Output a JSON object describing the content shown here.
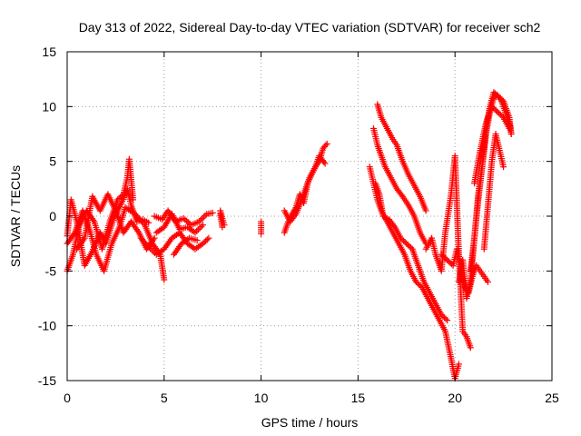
{
  "chart_data": {
    "type": "scatter",
    "title": "Day 313 of 2022, Sidereal Day-to-day VTEC variation (SDTVAR) for receiver sch2",
    "xlabel": "GPS time / hours",
    "ylabel": "SDTVAR / TECUs",
    "xlim": [
      0,
      25
    ],
    "ylim": [
      -15,
      15
    ],
    "xticks": [
      0,
      5,
      10,
      15,
      20,
      25
    ],
    "yticks": [
      -15,
      -10,
      -5,
      0,
      5,
      10,
      15
    ],
    "grid": true,
    "legend": "none",
    "marker": "plus",
    "color": "#ff0000",
    "series": [
      {
        "name": "SDTVAR",
        "tracks": [
          {
            "x": [
              0.0,
              0.2,
              0.5,
              0.9,
              1.3,
              1.7,
              2.0,
              2.4,
              2.8,
              3.1,
              3.3,
              3.6,
              3.9,
              4.2
            ],
            "y": [
              -1.8,
              1.5,
              -0.5,
              -4.5,
              -3.2,
              -1.5,
              -2.5,
              -0.2,
              1.2,
              2.5,
              1.0,
              -0.5,
              -0.3,
              -0.6
            ]
          },
          {
            "x": [
              0.0,
              0.3,
              0.6,
              1.0,
              1.4,
              1.8,
              2.2,
              2.6,
              2.9,
              3.1,
              3.2,
              3.4
            ],
            "y": [
              -5.0,
              -3.5,
              -1.0,
              0.5,
              -0.5,
              -3.0,
              -0.5,
              1.5,
              2.0,
              3.5,
              5.2,
              1.5
            ]
          },
          {
            "x": [
              0.0,
              0.4,
              0.8,
              1.2,
              1.5,
              1.9,
              2.3,
              2.7,
              3.0,
              3.5,
              4.0,
              4.4,
              4.8,
              5.0
            ],
            "y": [
              -2.5,
              -1.5,
              0.5,
              -1.5,
              -3.5,
              -5.0,
              -2.5,
              -1.0,
              0.8,
              0.2,
              -0.8,
              -2.5,
              -3.5,
              -5.8
            ]
          },
          {
            "x": [
              0.5,
              0.9,
              1.3,
              1.7,
              2.1,
              2.5,
              2.9,
              3.3,
              3.7,
              4.1,
              4.5
            ],
            "y": [
              -3.0,
              -2.0,
              1.8,
              0.5,
              2.0,
              0.5,
              -1.5,
              -0.5,
              -1.5,
              -3.0,
              -2.0
            ]
          },
          {
            "x": [
              3.8,
              4.2,
              4.6,
              5.0,
              5.4,
              5.8,
              6.2,
              6.6,
              7.0,
              7.3
            ],
            "y": [
              -2.0,
              -2.8,
              -3.5,
              -3.0,
              -2.0,
              -1.5,
              -2.5,
              -3.0,
              -2.5,
              -2.0
            ]
          },
          {
            "x": [
              4.5,
              4.9,
              5.2,
              5.6,
              6.0,
              6.4,
              6.8,
              7.2,
              7.5
            ],
            "y": [
              0.0,
              -0.3,
              0.5,
              -0.5,
              -0.2,
              -0.8,
              -0.5,
              0.2,
              0.3
            ]
          },
          {
            "x": [
              4.6,
              5.0,
              5.4,
              5.8,
              6.2,
              6.6,
              7.0
            ],
            "y": [
              -1.5,
              -1.0,
              0.2,
              -1.2,
              -1.0,
              -1.5,
              -0.8
            ]
          },
          {
            "x": [
              5.5,
              5.9,
              6.3,
              6.7
            ],
            "y": [
              -3.5,
              -2.5,
              -2.0,
              -2.2
            ]
          },
          {
            "x": [
              7.9,
              8.0,
              8.1,
              8.0,
              7.9
            ],
            "y": [
              0.5,
              -0.2,
              -0.8,
              -1.0,
              0.2
            ]
          },
          {
            "x": [
              10.0,
              10.0
            ],
            "y": [
              -0.5,
              -1.6
            ]
          },
          {
            "x": [
              11.2,
              11.4,
              11.6,
              11.8,
              12.0,
              12.2,
              12.4,
              12.6,
              12.8,
              13.0,
              13.2,
              13.4
            ],
            "y": [
              -1.5,
              -0.5,
              0.2,
              0.8,
              2.0,
              1.2,
              3.0,
              3.8,
              4.5,
              5.0,
              6.2,
              6.6
            ]
          },
          {
            "x": [
              11.2,
              11.5,
              11.8,
              12.1,
              12.3,
              12.5,
              12.8,
              13.0,
              13.3
            ],
            "y": [
              0.5,
              -0.5,
              0.2,
              1.5,
              2.5,
              3.5,
              4.5,
              5.5,
              4.8
            ]
          },
          {
            "x": [
              15.6,
              15.8,
              16.0,
              16.2,
              16.5,
              16.8,
              17.1,
              17.4,
              17.7,
              18.0,
              18.3,
              18.6,
              18.9,
              19.2,
              19.5,
              19.8,
              20.0,
              20.2
            ],
            "y": [
              4.5,
              3.0,
              1.5,
              0.5,
              -0.5,
              -1.5,
              -2.5,
              -3.5,
              -5.0,
              -6.0,
              -6.5,
              -7.5,
              -8.5,
              -9.5,
              -10.5,
              -13.0,
              -14.8,
              -13.5
            ]
          },
          {
            "x": [
              15.9,
              16.1,
              16.3,
              16.6,
              16.9,
              17.2,
              17.5,
              17.8,
              18.1,
              18.4,
              18.7,
              19.0,
              19.3,
              19.6
            ],
            "y": [
              3.0,
              2.0,
              0.0,
              -0.3,
              -1.0,
              -2.0,
              -2.5,
              -3.0,
              -4.5,
              -6.0,
              -7.0,
              -8.0,
              -9.0,
              -9.5
            ]
          },
          {
            "x": [
              15.8,
              16.0,
              16.2,
              16.4,
              16.7,
              17.0,
              17.3,
              17.6,
              17.9,
              18.2,
              18.5
            ],
            "y": [
              8.0,
              6.5,
              5.5,
              4.5,
              3.5,
              2.5,
              1.8,
              1.0,
              0.0,
              -1.5,
              -2.5
            ]
          },
          {
            "x": [
              16.0,
              16.2,
              16.5,
              16.8,
              17.0,
              17.3,
              17.6,
              17.9,
              18.2,
              18.5
            ],
            "y": [
              10.2,
              9.0,
              8.0,
              7.0,
              6.5,
              5.0,
              3.8,
              2.8,
              1.8,
              0.5
            ]
          },
          {
            "x": [
              18.5,
              18.8,
              19.0,
              19.3,
              19.5,
              19.8,
              20.0,
              20.2,
              20.4,
              20.6,
              20.8
            ],
            "y": [
              -3.0,
              -2.0,
              -3.5,
              -5.0,
              -1.5,
              2.0,
              5.5,
              -3.5,
              -10.5,
              -11.0,
              -12.0
            ]
          },
          {
            "x": [
              19.3,
              19.6,
              19.9,
              20.1,
              20.3,
              20.5,
              20.7,
              20.9,
              21.1,
              21.3,
              21.5,
              21.7
            ],
            "y": [
              -3.5,
              -4.0,
              -4.5,
              -3.0,
              -5.0,
              -6.5,
              -7.0,
              -5.5,
              -4.5,
              -5.0,
              -5.5,
              -6.0
            ]
          },
          {
            "x": [
              20.2,
              20.4,
              20.6,
              20.8,
              21.0,
              21.2,
              21.4,
              21.6,
              21.8,
              22.0,
              22.2,
              22.4,
              22.6,
              22.8,
              22.9
            ],
            "y": [
              -6.0,
              -4.0,
              -7.5,
              -6.0,
              -2.0,
              2.0,
              4.5,
              8.0,
              10.0,
              11.3,
              11.0,
              10.5,
              9.5,
              8.5,
              7.5
            ]
          },
          {
            "x": [
              20.8,
              21.0,
              21.2,
              21.4,
              21.6,
              21.8,
              22.0,
              22.2,
              22.5,
              22.8,
              22.9
            ],
            "y": [
              -5.0,
              -2.0,
              1.5,
              4.5,
              7.5,
              9.5,
              10.8,
              11.0,
              10.5,
              9.0,
              7.5
            ]
          },
          {
            "x": [
              21.0,
              21.3,
              21.6,
              21.9,
              22.2,
              22.5,
              22.8
            ],
            "y": [
              3.0,
              6.0,
              8.5,
              10.0,
              9.5,
              9.0,
              8.0
            ]
          },
          {
            "x": [
              21.5,
              21.7,
              21.9,
              22.1,
              22.3,
              22.5
            ],
            "y": [
              -3.0,
              1.0,
              5.0,
              7.5,
              6.0,
              4.5
            ]
          }
        ]
      }
    ]
  }
}
